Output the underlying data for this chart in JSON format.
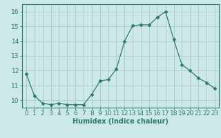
{
  "x": [
    0,
    1,
    2,
    3,
    4,
    5,
    6,
    7,
    8,
    9,
    10,
    11,
    12,
    13,
    14,
    15,
    16,
    17,
    18,
    19,
    20,
    21,
    22,
    23
  ],
  "y": [
    11.8,
    10.3,
    9.8,
    9.7,
    9.8,
    9.7,
    9.7,
    9.7,
    10.4,
    11.3,
    11.4,
    12.1,
    14.0,
    15.05,
    15.1,
    15.1,
    15.6,
    16.0,
    14.1,
    12.4,
    12.0,
    11.5,
    11.2,
    10.8
  ],
  "line_color": "#2d7a6e",
  "marker": "D",
  "marker_size": 2.5,
  "bg_color": "#cce8e8",
  "grid_major_color": "#aac8c8",
  "grid_minor_color": "#bbdddd",
  "xlabel": "Humidex (Indice chaleur)",
  "xlim": [
    -0.5,
    23.5
  ],
  "ylim": [
    9.5,
    16.5
  ],
  "yticks": [
    10,
    11,
    12,
    13,
    14,
    15,
    16
  ],
  "xticks": [
    0,
    1,
    2,
    3,
    4,
    5,
    6,
    7,
    8,
    9,
    10,
    11,
    12,
    13,
    14,
    15,
    16,
    17,
    18,
    19,
    20,
    21,
    22,
    23
  ],
  "xlabel_fontsize": 7,
  "tick_fontsize": 6.5
}
